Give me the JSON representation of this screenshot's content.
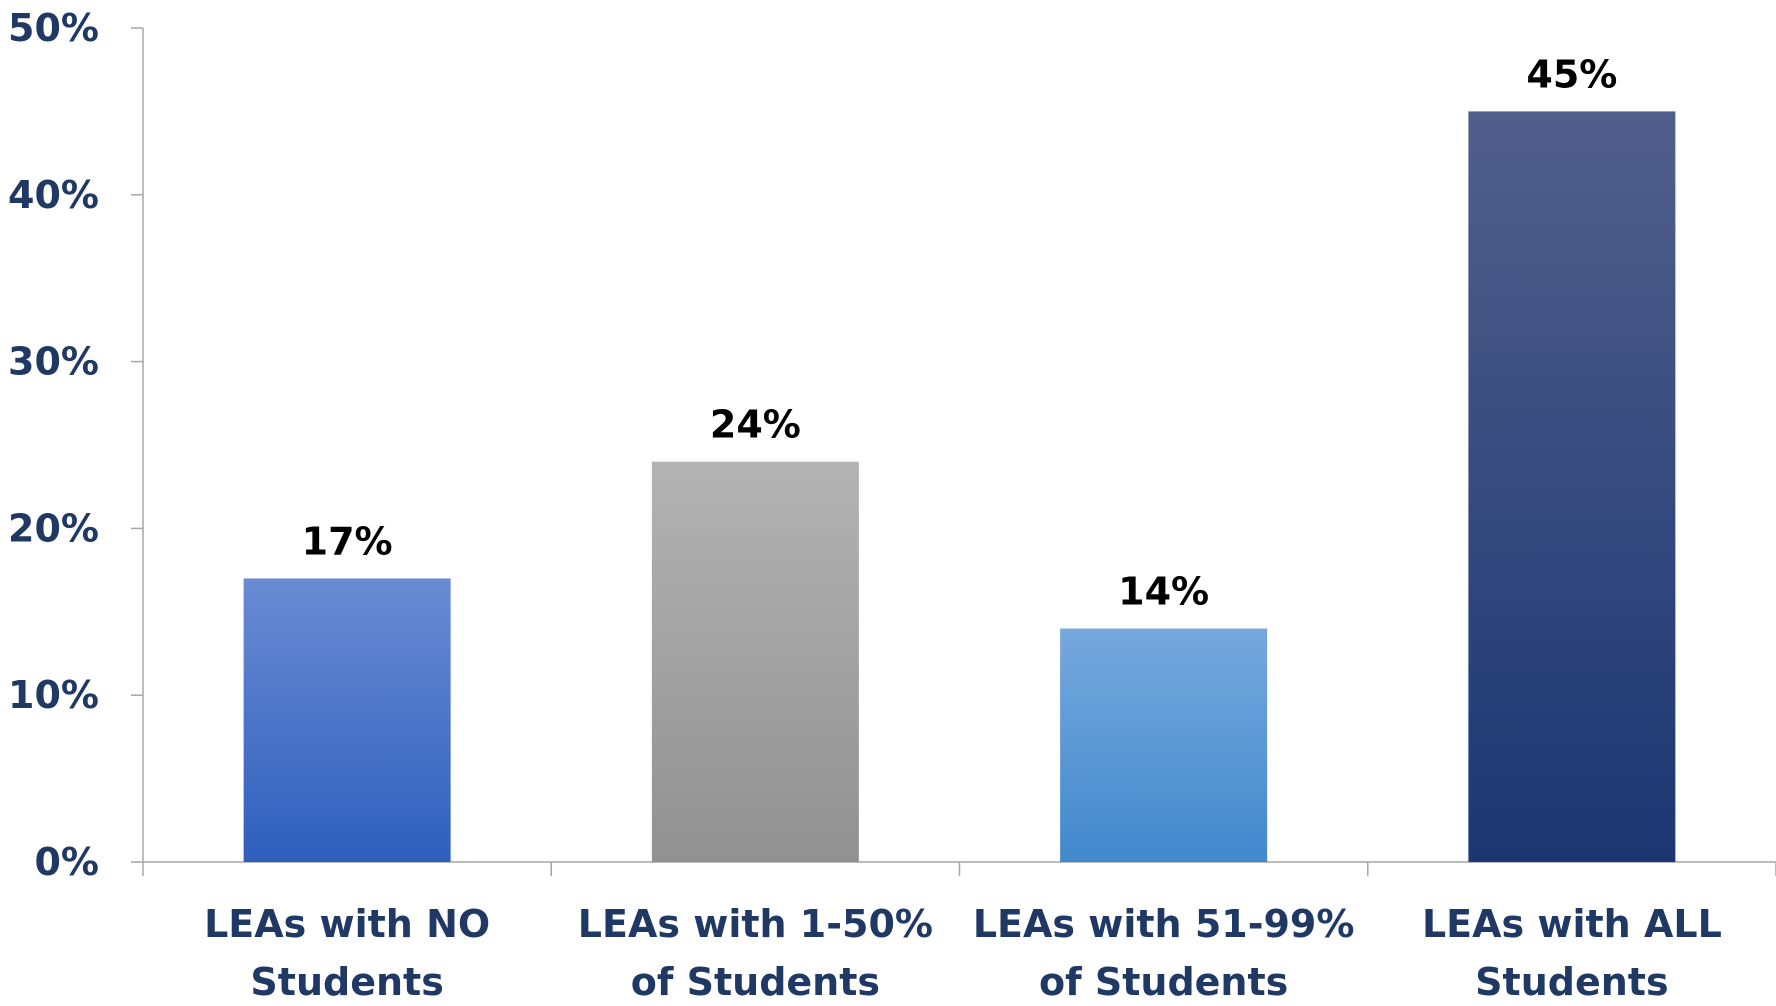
{
  "chart_data": {
    "type": "bar",
    "title": "",
    "xlabel": "",
    "ylabel": "",
    "ylim": [
      0,
      50
    ],
    "yticks": [
      {
        "value": 0,
        "label": "0%"
      },
      {
        "value": 10,
        "label": "10%"
      },
      {
        "value": 20,
        "label": "20%"
      },
      {
        "value": 30,
        "label": "30%"
      },
      {
        "value": 40,
        "label": "40%"
      },
      {
        "value": 50,
        "label": "50%"
      }
    ],
    "categories": [
      [
        "LEAs with NO",
        "Students"
      ],
      [
        "LEAs with 1-50%",
        "of Students"
      ],
      [
        "LEAs with 51-99%",
        "of Students"
      ],
      [
        "LEAs with ALL",
        "Students"
      ]
    ],
    "values": [
      17,
      24,
      14,
      45
    ],
    "value_labels": [
      "17%",
      "24%",
      "14%",
      "45%"
    ],
    "grid": false,
    "legend": "none",
    "colors": {
      "axis": "#a6a6a6",
      "tick_label": "#1f3864",
      "data_label": "#000000",
      "bars": [
        {
          "top": "#6a8bd3",
          "bottom": "#2e5fbd"
        },
        {
          "top": "#b3b3b3",
          "bottom": "#919191"
        },
        {
          "top": "#76a8dd",
          "bottom": "#4189cc"
        },
        {
          "top": "#525f8b",
          "bottom": "#1b3672"
        }
      ]
    }
  }
}
